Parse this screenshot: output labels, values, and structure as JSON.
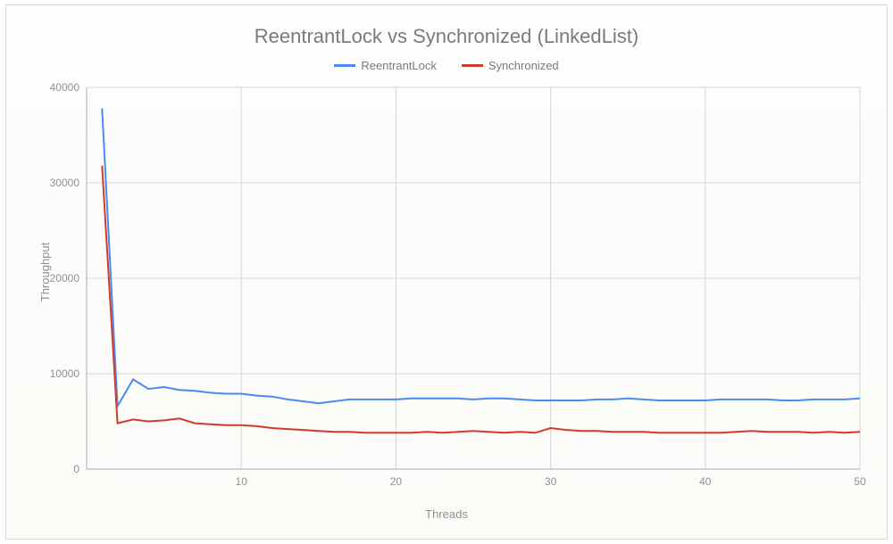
{
  "chart": {
    "type": "line",
    "title": "ReentrantLock vs Synchronized (LinkedList)",
    "title_fontsize": 22,
    "title_color": "#777b80",
    "xlabel": "Threads",
    "ylabel": "Throughput",
    "label_fontsize": 13,
    "label_color": "#8c9196",
    "background_color": "#fdfdfc",
    "frame_border_color": "#d8d8d8",
    "grid_color": "#d3d7dc",
    "axis_color": "#a7acb3",
    "tick_label_color": "#8d9298",
    "tick_fontsize": 12,
    "line_width": 2,
    "xlim": [
      0,
      50
    ],
    "ylim": [
      0,
      40000
    ],
    "xticks": [
      10,
      20,
      30,
      40,
      50
    ],
    "yticks": [
      0,
      10000,
      20000,
      30000,
      40000
    ],
    "legend": {
      "position": "top-center",
      "fontsize": 13,
      "text_color": "#777b80",
      "items": [
        {
          "label": "ReentrantLock",
          "color": "#4a8af2"
        },
        {
          "label": "Synchronized",
          "color": "#cf3b2d"
        }
      ]
    },
    "series": [
      {
        "name": "ReentrantLock",
        "color": "#4a8af2",
        "x": [
          1,
          2,
          3,
          4,
          5,
          6,
          7,
          8,
          9,
          10,
          11,
          12,
          13,
          14,
          15,
          16,
          17,
          18,
          19,
          20,
          21,
          22,
          23,
          24,
          25,
          26,
          27,
          28,
          29,
          30,
          31,
          32,
          33,
          34,
          35,
          36,
          37,
          38,
          39,
          40,
          41,
          42,
          43,
          44,
          45,
          46,
          47,
          48,
          49,
          50
        ],
        "y": [
          37800,
          6600,
          9400,
          8400,
          8600,
          8300,
          8200,
          8000,
          7900,
          7900,
          7700,
          7600,
          7300,
          7100,
          6900,
          7100,
          7300,
          7300,
          7300,
          7300,
          7400,
          7400,
          7400,
          7400,
          7300,
          7400,
          7400,
          7300,
          7200,
          7200,
          7200,
          7200,
          7300,
          7300,
          7400,
          7300,
          7200,
          7200,
          7200,
          7200,
          7300,
          7300,
          7300,
          7300,
          7200,
          7200,
          7300,
          7300,
          7300,
          7400
        ]
      },
      {
        "name": "Synchronized",
        "color": "#cf3b2d",
        "x": [
          1,
          2,
          3,
          4,
          5,
          6,
          7,
          8,
          9,
          10,
          11,
          12,
          13,
          14,
          15,
          16,
          17,
          18,
          19,
          20,
          21,
          22,
          23,
          24,
          25,
          26,
          27,
          28,
          29,
          30,
          31,
          32,
          33,
          34,
          35,
          36,
          37,
          38,
          39,
          40,
          41,
          42,
          43,
          44,
          45,
          46,
          47,
          48,
          49,
          50
        ],
        "y": [
          31800,
          4800,
          5200,
          5000,
          5100,
          5300,
          4800,
          4700,
          4600,
          4600,
          4500,
          4300,
          4200,
          4100,
          4000,
          3900,
          3900,
          3800,
          3800,
          3800,
          3800,
          3900,
          3800,
          3900,
          4000,
          3900,
          3800,
          3900,
          3800,
          4300,
          4100,
          4000,
          4000,
          3900,
          3900,
          3900,
          3800,
          3800,
          3800,
          3800,
          3800,
          3900,
          4000,
          3900,
          3900,
          3900,
          3800,
          3900,
          3800,
          3900
        ]
      }
    ]
  }
}
